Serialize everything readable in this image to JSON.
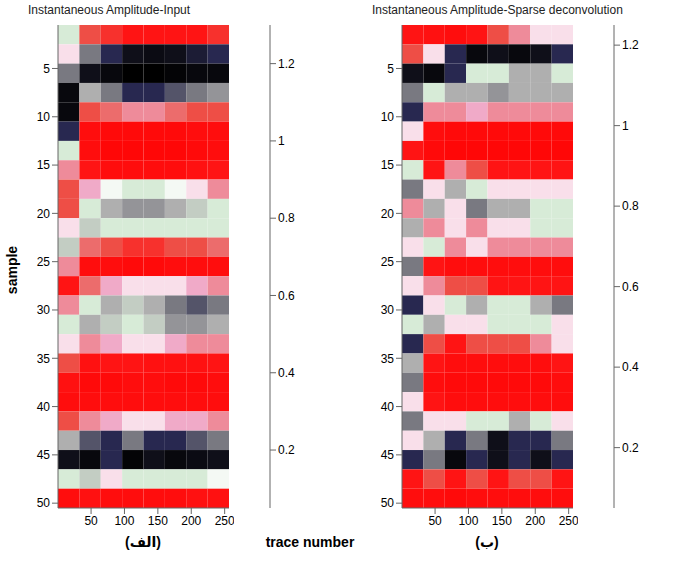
{
  "ylabel": "sample",
  "xlabel": "trace number",
  "chart_data": [
    {
      "type": "heatmap",
      "title": "Instantaneous Amplitude-Input",
      "panel_label": "(الف)",
      "xlim": [
        0.5,
        256.5
      ],
      "xticks": [
        50,
        100,
        150,
        200,
        250
      ],
      "ylim": [
        0.5,
        50.5
      ],
      "yticks": [
        5,
        10,
        15,
        20,
        25,
        30,
        35,
        40,
        45,
        50
      ],
      "x_edges": [
        0.5,
        32.5,
        64.5,
        96.5,
        128.5,
        160.5,
        192.5,
        224.5,
        256.5
      ],
      "y_edges": [
        0.5,
        2.5,
        4.5,
        6.5,
        8.5,
        10.5,
        12.5,
        14.5,
        16.5,
        18.5,
        20.5,
        22.5,
        24.5,
        26.5,
        28.5,
        30.5,
        32.5,
        34.5,
        36.5,
        38.5,
        40.5,
        42.5,
        44.5,
        46.5,
        48.5,
        50.5
      ],
      "cells": [
        [
          0.7,
          0.4,
          0.35,
          0.3,
          0.3,
          0.3,
          0.3,
          0.35
        ],
        [
          0.6,
          0.9,
          1.0,
          1.1,
          1.15,
          1.1,
          1.05,
          1.0
        ],
        [
          0.9,
          1.1,
          1.2,
          1.3,
          1.3,
          1.25,
          1.2,
          1.2
        ],
        [
          1.2,
          0.8,
          0.9,
          1.0,
          1.0,
          0.95,
          0.9,
          0.85
        ],
        [
          1.2,
          0.4,
          0.45,
          0.5,
          0.5,
          0.45,
          0.4,
          0.4
        ],
        [
          1.0,
          0.2,
          0.15,
          0.15,
          0.15,
          0.15,
          0.2,
          0.2
        ],
        [
          0.7,
          0.2,
          0.1,
          0.1,
          0.1,
          0.1,
          0.15,
          0.2
        ],
        [
          0.5,
          0.3,
          0.2,
          0.2,
          0.2,
          0.2,
          0.25,
          0.3
        ],
        [
          0.4,
          0.55,
          0.65,
          0.7,
          0.7,
          0.65,
          0.6,
          0.5
        ],
        [
          0.4,
          0.7,
          0.8,
          0.85,
          0.85,
          0.8,
          0.75,
          0.7
        ],
        [
          0.6,
          0.75,
          0.7,
          0.7,
          0.7,
          0.7,
          0.7,
          0.7
        ],
        [
          0.75,
          0.45,
          0.4,
          0.35,
          0.35,
          0.4,
          0.4,
          0.45
        ],
        [
          0.5,
          0.2,
          0.2,
          0.15,
          0.15,
          0.2,
          0.2,
          0.2
        ],
        [
          0.3,
          0.45,
          0.55,
          0.6,
          0.6,
          0.6,
          0.55,
          0.5
        ],
        [
          0.5,
          0.7,
          0.8,
          0.75,
          0.8,
          0.9,
          0.95,
          0.9
        ],
        [
          0.7,
          0.8,
          0.75,
          0.7,
          0.75,
          0.85,
          0.85,
          0.8
        ],
        [
          0.6,
          0.5,
          0.55,
          0.6,
          0.6,
          0.55,
          0.5,
          0.5
        ],
        [
          0.4,
          0.25,
          0.3,
          0.3,
          0.25,
          0.25,
          0.25,
          0.3
        ],
        [
          0.25,
          0.15,
          0.15,
          0.2,
          0.2,
          0.15,
          0.15,
          0.2
        ],
        [
          0.2,
          0.2,
          0.2,
          0.2,
          0.2,
          0.2,
          0.2,
          0.2
        ],
        [
          0.4,
          0.5,
          0.55,
          0.6,
          0.6,
          0.55,
          0.55,
          0.5
        ],
        [
          0.8,
          0.95,
          1.0,
          0.9,
          1.0,
          1.0,
          0.95,
          0.9
        ],
        [
          1.1,
          1.2,
          1.0,
          1.25,
          1.1,
          1.2,
          1.15,
          1.1
        ],
        [
          0.7,
          0.75,
          0.6,
          0.7,
          0.7,
          0.7,
          0.7,
          0.65
        ],
        [
          0.2,
          0.25,
          0.2,
          0.2,
          0.2,
          0.2,
          0.25,
          0.25
        ]
      ],
      "colorbar": {
        "range": [
          0.05,
          1.3
        ],
        "ticks": [
          0.2,
          0.4,
          0.6,
          0.8,
          1,
          1.2
        ]
      }
    },
    {
      "type": "heatmap",
      "title": "Instantaneous Amplitude-Sparse deconvolution",
      "panel_label": "(ب)",
      "xlim": [
        0.5,
        256.5
      ],
      "xticks": [
        50,
        100,
        150,
        200,
        250
      ],
      "ylim": [
        0.5,
        50.5
      ],
      "yticks": [
        5,
        10,
        15,
        20,
        25,
        30,
        35,
        40,
        45,
        50
      ],
      "x_edges": [
        0.5,
        32.5,
        64.5,
        96.5,
        128.5,
        160.5,
        192.5,
        224.5,
        256.5
      ],
      "y_edges": [
        0.5,
        2.5,
        4.5,
        6.5,
        8.5,
        10.5,
        12.5,
        14.5,
        16.5,
        18.5,
        20.5,
        22.5,
        24.5,
        26.5,
        28.5,
        30.5,
        32.5,
        34.5,
        36.5,
        38.5,
        40.5,
        42.5,
        44.5,
        46.5,
        48.5,
        50.5
      ],
      "cells": [
        [
          0.3,
          0.25,
          0.2,
          0.3,
          0.4,
          0.5,
          0.6,
          0.6
        ],
        [
          0.4,
          0.6,
          1.0,
          1.2,
          1.1,
          1.2,
          1.1,
          1.0
        ],
        [
          1.1,
          1.2,
          1.0,
          0.7,
          0.7,
          0.8,
          0.8,
          0.7
        ],
        [
          0.9,
          0.7,
          0.8,
          0.8,
          0.85,
          0.8,
          0.8,
          0.8
        ],
        [
          1.0,
          0.5,
          0.5,
          0.55,
          0.5,
          0.5,
          0.5,
          0.5
        ],
        [
          0.6,
          0.2,
          0.15,
          0.15,
          0.15,
          0.15,
          0.15,
          0.15
        ],
        [
          0.3,
          0.15,
          0.1,
          0.1,
          0.1,
          0.1,
          0.1,
          0.1
        ],
        [
          0.7,
          0.3,
          0.5,
          0.4,
          0.3,
          0.3,
          0.3,
          0.3
        ],
        [
          0.9,
          0.6,
          0.8,
          0.7,
          0.6,
          0.6,
          0.6,
          0.6
        ],
        [
          0.5,
          0.8,
          0.6,
          0.9,
          0.8,
          0.8,
          0.7,
          0.7
        ],
        [
          0.8,
          0.5,
          0.6,
          0.5,
          0.6,
          0.6,
          0.7,
          0.7
        ],
        [
          0.6,
          0.7,
          0.5,
          0.6,
          0.5,
          0.5,
          0.5,
          0.5
        ],
        [
          0.9,
          0.3,
          0.2,
          0.2,
          0.2,
          0.2,
          0.2,
          0.2
        ],
        [
          0.6,
          0.5,
          0.4,
          0.4,
          0.3,
          0.3,
          0.3,
          0.3
        ],
        [
          1.0,
          0.6,
          0.7,
          0.8,
          0.7,
          0.7,
          0.8,
          0.9
        ],
        [
          0.7,
          0.8,
          0.6,
          0.6,
          0.7,
          0.7,
          0.7,
          0.6
        ],
        [
          1.0,
          0.4,
          0.3,
          0.4,
          0.4,
          0.4,
          0.5,
          0.6
        ],
        [
          0.8,
          0.3,
          0.2,
          0.2,
          0.2,
          0.2,
          0.2,
          0.3
        ],
        [
          0.9,
          0.2,
          0.15,
          0.15,
          0.15,
          0.15,
          0.15,
          0.2
        ],
        [
          0.6,
          0.3,
          0.2,
          0.2,
          0.2,
          0.2,
          0.2,
          0.2
        ],
        [
          0.9,
          0.6,
          0.6,
          0.7,
          0.7,
          0.8,
          0.7,
          0.6
        ],
        [
          0.6,
          0.8,
          1.0,
          0.9,
          1.1,
          1.0,
          1.0,
          0.9
        ],
        [
          1.0,
          0.9,
          1.2,
          1.0,
          1.1,
          1.0,
          1.1,
          1.0
        ],
        [
          0.3,
          0.4,
          0.3,
          0.4,
          0.3,
          0.4,
          0.4,
          0.3
        ],
        [
          0.2,
          0.2,
          0.15,
          0.2,
          0.2,
          0.2,
          0.2,
          0.2
        ]
      ],
      "colorbar": {
        "range": [
          0.05,
          1.25
        ],
        "ticks": [
          0.2,
          0.4,
          0.6,
          0.8,
          1,
          1.2
        ]
      }
    }
  ]
}
